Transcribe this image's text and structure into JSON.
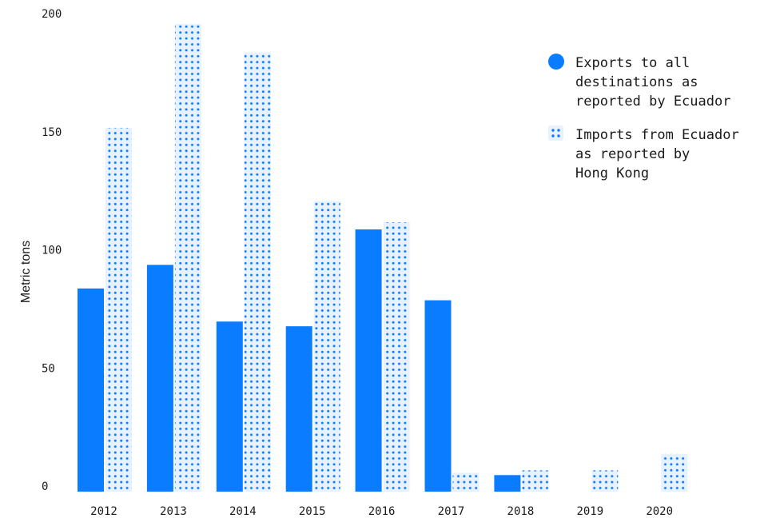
{
  "colors": {
    "exports": "#0a7cff",
    "imports_bg": "#e8f2ff",
    "imports_dot": "#0a7cff"
  },
  "chart_data": {
    "type": "bar",
    "title": "",
    "xlabel": "",
    "ylabel": "Metric tons",
    "ylim": [
      0,
      200
    ],
    "yticks": [
      0,
      50,
      100,
      150,
      200
    ],
    "grid": false,
    "legend_position": "top-right",
    "categories": [
      "2012",
      "2013",
      "2014",
      "2015",
      "2016",
      "2017",
      "2018",
      "2019",
      "2020"
    ],
    "series": [
      {
        "name": "Exports to all destinations as reported by Ecuador",
        "legend_lines": [
          "Exports to all",
          "destinations as",
          "reported by Ecuador"
        ],
        "style": "solid",
        "values": [
          86,
          96,
          72,
          70,
          111,
          81,
          7,
          0,
          0
        ]
      },
      {
        "name": "Imports from Ecuador as reported by Hong Kong",
        "legend_lines": [
          "Imports from Ecuador",
          "as reported by",
          "Hong Kong"
        ],
        "style": "dotted",
        "values": [
          154,
          198,
          186,
          123,
          114,
          8,
          9,
          9,
          16
        ]
      }
    ]
  }
}
